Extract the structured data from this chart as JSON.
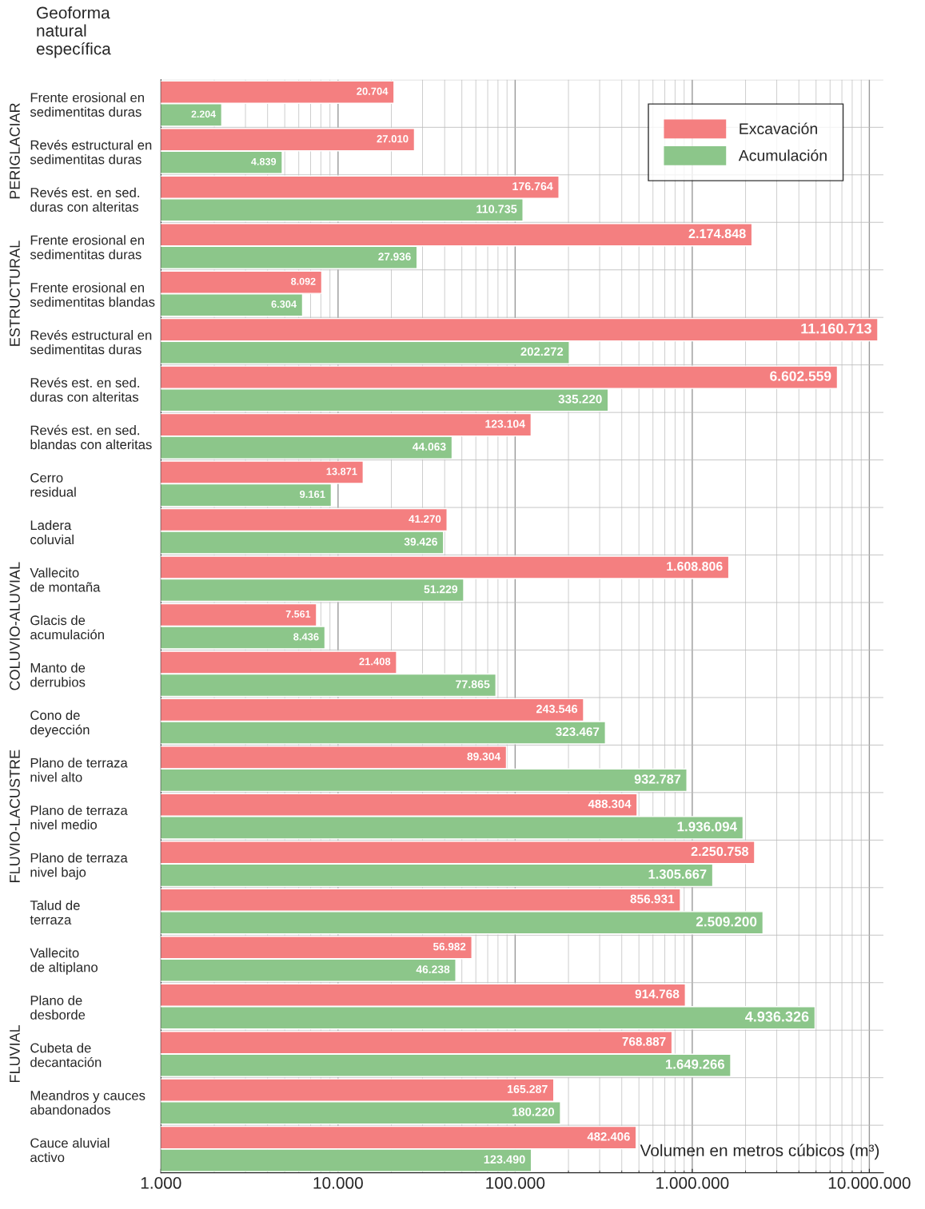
{
  "chart_data": {
    "type": "bar",
    "orientation": "horizontal",
    "log": "x",
    "ylabel": "Geoforma\nnatural\nespecífica",
    "xlabel": "Volumen en metros cúbicos (m³)",
    "categories": [
      "Frente erosional en\nsedimentitas duras",
      "Revés estructural en\nsedimentitas duras",
      "Revés est. en sed.\nduras con alteritas",
      "Frente erosional en\nsedimentitas duras",
      "Frente erosional en\nsedimentitas blandas",
      "Revés estructural en\nsedimentitas duras",
      "Revés est. en sed.\nduras con alteritas",
      "Revés est. en sed.\nblandas con alteritas",
      "Cerro\nresidual",
      "Ladera\ncoluvial",
      "Vallecito\nde montaña",
      "Glacis de\nacumulación",
      "Manto de\nderrubios",
      "Cono de\ndeyección",
      "Plano de terraza\nnivel alto",
      "Plano de terraza\nnivel medio",
      "Plano de terraza\nnivel bajo",
      "Talud de\nterraza",
      "Vallecito\nde altiplano",
      "Plano de\ndesborde",
      "Cubeta de\ndecantación",
      "Meandros y cauces\nabandonados",
      "Cauce aluvial\nactivo"
    ],
    "series": [
      {
        "name": "Excavación",
        "color": "#f47f80",
        "values": [
          20704,
          27010,
          176764,
          2174848,
          8092,
          11160713,
          6602559,
          123104,
          13871,
          41270,
          1608806,
          7561,
          21408,
          243546,
          89304,
          488304,
          2250758,
          856931,
          56982,
          914768,
          768887,
          165287,
          482406
        ],
        "value_labels": [
          "20.704",
          "27.010",
          "176.764",
          "2.174.848",
          "8.092",
          "11.160.713",
          "6.602.559",
          "123.104",
          "13.871",
          "41.270",
          "1.608.806",
          "7.561",
          "21.408",
          "243.546",
          "89.304",
          "488.304",
          "2.250.758",
          "856.931",
          "56.982",
          "914.768",
          "768.887",
          "165.287",
          "482.406"
        ]
      },
      {
        "name": "Acumulación",
        "color": "#8cc68a",
        "values": [
          2204,
          4839,
          110735,
          27936,
          6304,
          202272,
          335220,
          44063,
          9161,
          39426,
          51229,
          8436,
          77865,
          323467,
          932787,
          1936094,
          1305667,
          2509200,
          46238,
          4936326,
          1649266,
          180220,
          123490
        ],
        "value_labels": [
          "2.204",
          "4.839",
          "110.735",
          "27.936",
          "6.304",
          "202.272",
          "335.220",
          "44.063",
          "9.161",
          "39.426",
          "51.229",
          "8.436",
          "77.865",
          "323.467",
          "932.787",
          "1.936.094",
          "1.305.667",
          "2.509.200",
          "46.238",
          "4.936.326",
          "1.649.266",
          "180.220",
          "123.490"
        ]
      }
    ],
    "xlim": [
      1000,
      12000000
    ],
    "xticks": [
      {
        "value": 1000,
        "label": "1.000"
      },
      {
        "value": 10000,
        "label": "10.000"
      },
      {
        "value": 100000,
        "label": "100.000"
      },
      {
        "value": 1000000,
        "label": "1.000.000"
      },
      {
        "value": 10000000,
        "label": "10.000.000"
      }
    ],
    "grid": "x",
    "legend": "top right",
    "annotations": [
      {
        "text": "PERIGLACIAR",
        "y": "Revés estructural en\nsedimentitas duras"
      },
      {
        "text": "ESTRUCTURAL",
        "y": "Frente erosional en\nsedimentitas blandas"
      },
      {
        "text": "COLUVIO-ALUVIAL",
        "y": "Glacis de\nacumulación"
      },
      {
        "text": "FLUVIO-LACUSTRE",
        "y": "Plano de terraza\nnivel medio"
      },
      {
        "text": "FLUVIAL",
        "y": "Cubeta de\ndecantación"
      }
    ]
  }
}
